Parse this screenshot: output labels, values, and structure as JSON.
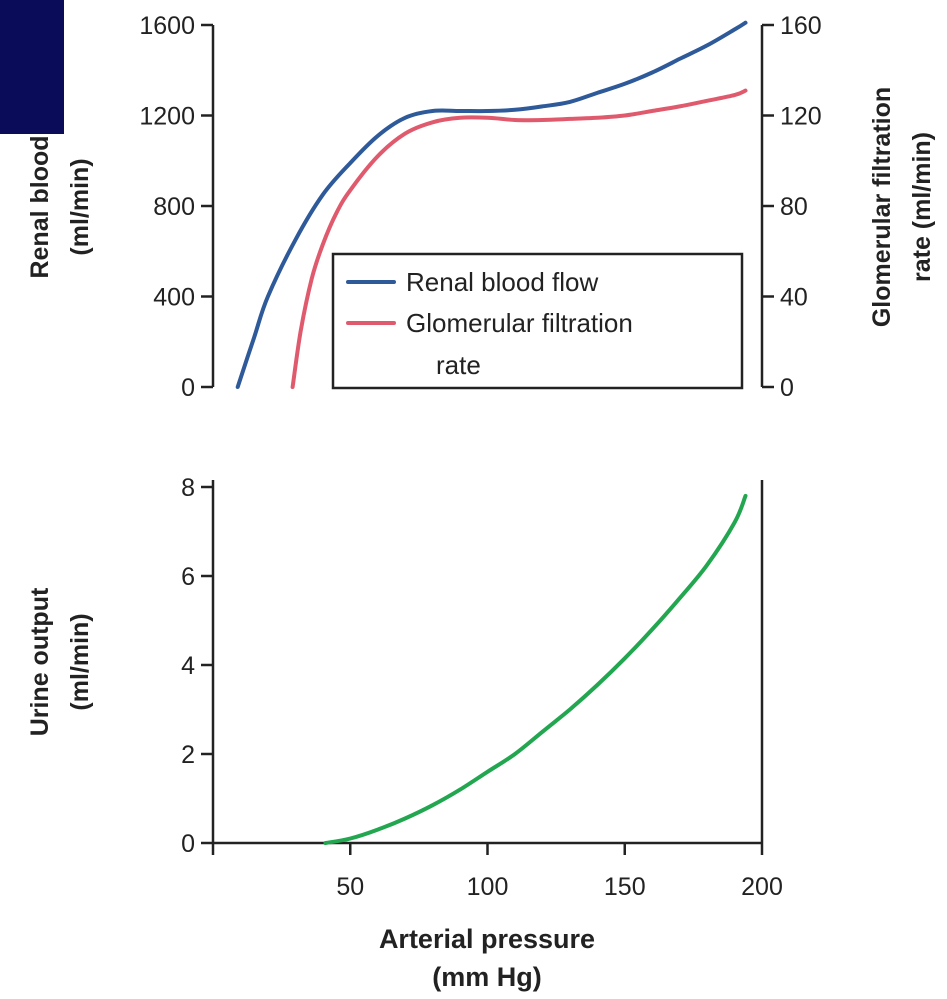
{
  "colors": {
    "corner_block": "#0a0c5a",
    "axis": "#222222",
    "renal_blood_flow": "#2e5a9a",
    "gfr": "#e05a6e",
    "urine_output": "#22a650"
  },
  "chart_data": [
    {
      "type": "line",
      "panel": "top",
      "ylabel_left_line1": "Renal blood",
      "ylabel_left_line2": "(ml/min)",
      "ylabel_right_line1": "Glomerular filtration",
      "ylabel_right_line2": "rate (ml/min)",
      "xlim": [
        0,
        200
      ],
      "ylim_left": [
        0,
        1600
      ],
      "ylim_right": [
        0,
        160
      ],
      "yticks_left": [
        0,
        400,
        800,
        1200,
        1600
      ],
      "yticks_right": [
        0,
        40,
        80,
        120,
        160
      ],
      "legend": {
        "position": "lower-right",
        "entries": [
          "Renal blood flow",
          "Glomerular filtration",
          "rate"
        ]
      },
      "series": [
        {
          "name": "Renal blood flow",
          "axis": "left",
          "x": [
            9,
            15,
            20,
            30,
            40,
            50,
            60,
            70,
            80,
            90,
            100,
            110,
            120,
            130,
            140,
            150,
            160,
            170,
            180,
            190,
            194
          ],
          "y": [
            0,
            220,
            400,
            650,
            850,
            990,
            1110,
            1190,
            1220,
            1220,
            1220,
            1225,
            1240,
            1260,
            1300,
            1340,
            1390,
            1450,
            1510,
            1580,
            1610
          ]
        },
        {
          "name": "Glomerular filtration rate",
          "axis": "right",
          "x": [
            29,
            32,
            36,
            40,
            45,
            50,
            60,
            70,
            80,
            90,
            100,
            110,
            120,
            130,
            140,
            150,
            160,
            170,
            180,
            190,
            194
          ],
          "y": [
            0,
            25,
            48,
            63,
            77,
            87,
            102,
            112,
            117,
            119,
            119,
            118,
            118,
            118.5,
            119,
            120,
            122,
            124,
            126.5,
            129,
            131
          ]
        }
      ]
    },
    {
      "type": "line",
      "panel": "bottom",
      "ylabel_line1": "Urine output",
      "ylabel_line2": "(ml/min)",
      "xlabel_line1": "Arterial pressure",
      "xlabel_line2": "(mm Hg)",
      "xlim": [
        0,
        200
      ],
      "ylim": [
        0,
        8
      ],
      "xticks": [
        50,
        100,
        150,
        200
      ],
      "yticks": [
        0,
        2,
        4,
        6,
        8
      ],
      "series": [
        {
          "name": "Urine output",
          "x": [
            41,
            50,
            60,
            70,
            80,
            90,
            100,
            110,
            120,
            130,
            140,
            150,
            160,
            170,
            180,
            190,
            194
          ],
          "y": [
            0,
            0.1,
            0.3,
            0.55,
            0.85,
            1.2,
            1.6,
            2.0,
            2.5,
            3.0,
            3.55,
            4.15,
            4.8,
            5.5,
            6.25,
            7.2,
            7.8
          ]
        }
      ]
    }
  ]
}
